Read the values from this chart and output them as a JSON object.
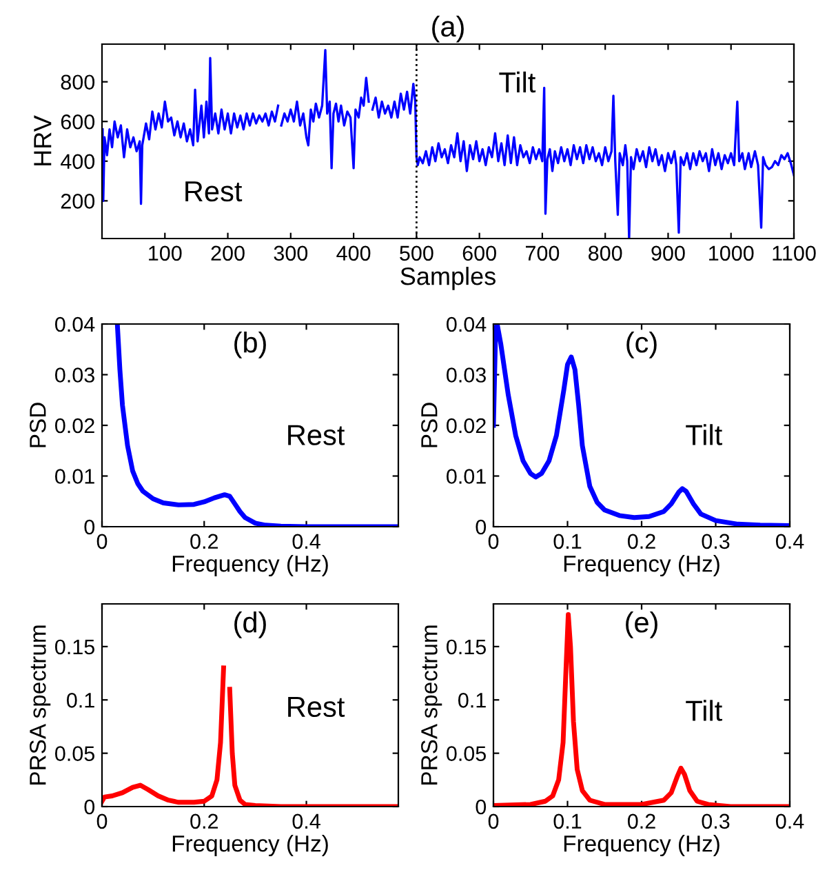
{
  "chart_data": [
    {
      "type": "line",
      "title": "(a)",
      "xlabel": "Samples",
      "ylabel": "HRV",
      "xlim": [
        0,
        1100
      ],
      "ylim": [
        10,
        990
      ],
      "xticks": [
        100,
        200,
        300,
        400,
        500,
        600,
        700,
        800,
        900,
        1000,
        1100
      ],
      "yticks": [
        200,
        400,
        600,
        800
      ],
      "annotations": [
        "Rest",
        "Tilt"
      ],
      "ref_lines": [
        {
          "axis": "x",
          "value": 500,
          "color": "#000000",
          "line_style": "dotted"
        }
      ],
      "series": [
        {
          "color": "#0000ff",
          "x": [
            1,
            2,
            4,
            8,
            12,
            16,
            20,
            25,
            30,
            35,
            40,
            45,
            50,
            55,
            60,
            62,
            64,
            70,
            75,
            80,
            85,
            90,
            95,
            100,
            105,
            110,
            115,
            120,
            125,
            130,
            135,
            140,
            145,
            148,
            152,
            158,
            162,
            166,
            170,
            172,
            175,
            180,
            185,
            190,
            195,
            200,
            205,
            210,
            215,
            220,
            225,
            230,
            235,
            240,
            245,
            250,
            255,
            260,
            265,
            270,
            275,
            280,
            282,
            285,
            290,
            295,
            300,
            305,
            310,
            315,
            320,
            325,
            328,
            332,
            336,
            340,
            345,
            350,
            355,
            358,
            362,
            365,
            368,
            372,
            376,
            380,
            385,
            390,
            395,
            400,
            403,
            408,
            412,
            416,
            420,
            424,
            427,
            430,
            435,
            440,
            445,
            450,
            455,
            460,
            465,
            470,
            475,
            480,
            485,
            490,
            495,
            498,
            500,
            502,
            505,
            510,
            515,
            520,
            525,
            530,
            535,
            540,
            545,
            550,
            555,
            560,
            565,
            570,
            575,
            580,
            585,
            590,
            595,
            600,
            605,
            610,
            615,
            620,
            625,
            630,
            635,
            640,
            645,
            650,
            655,
            660,
            665,
            670,
            675,
            680,
            685,
            690,
            695,
            700,
            703,
            705,
            708,
            712,
            716,
            720,
            725,
            730,
            735,
            740,
            745,
            750,
            755,
            760,
            765,
            770,
            775,
            780,
            785,
            790,
            795,
            800,
            805,
            810,
            813,
            816,
            820,
            823,
            828,
            832,
            835,
            838,
            841,
            845,
            850,
            855,
            860,
            865,
            870,
            875,
            880,
            885,
            890,
            895,
            900,
            905,
            910,
            913,
            917,
            920,
            925,
            930,
            935,
            940,
            945,
            950,
            955,
            960,
            965,
            970,
            975,
            980,
            985,
            990,
            995,
            1000,
            1005,
            1010,
            1013,
            1018,
            1022,
            1028,
            1032,
            1038,
            1043,
            1048,
            1051,
            1055,
            1060,
            1065,
            1070,
            1075,
            1080,
            1085,
            1090,
            1095,
            1100
          ],
          "values": [
            560,
            200,
            520,
            430,
            560,
            470,
            600,
            520,
            580,
            420,
            560,
            470,
            520,
            450,
            500,
            185,
            480,
            590,
            510,
            650,
            560,
            640,
            570,
            700,
            600,
            620,
            530,
            600,
            520,
            590,
            500,
            560,
            480,
            760,
            500,
            680,
            520,
            700,
            540,
            920,
            560,
            640,
            540,
            660,
            560,
            640,
            540,
            640,
            570,
            630,
            560,
            640,
            580,
            640,
            590,
            630,
            600,
            640,
            580,
            650,
            600,
            680,
            null,
            580,
            640,
            600,
            660,
            600,
            700,
            580,
            640,
            520,
            480,
            660,
            600,
            690,
            620,
            680,
            960,
            640,
            700,
            365,
            640,
            690,
            600,
            680,
            580,
            650,
            620,
            365,
            660,
            620,
            720,
            680,
            820,
            700,
            null,
            660,
            720,
            620,
            700,
            640,
            680,
            620,
            700,
            620,
            740,
            660,
            750,
            640,
            790,
            700,
            420,
            380,
            420,
            390,
            450,
            380,
            470,
            400,
            490,
            420,
            460,
            390,
            480,
            420,
            540,
            400,
            500,
            350,
            480,
            410,
            500,
            400,
            460,
            380,
            470,
            420,
            540,
            400,
            490,
            380,
            530,
            390,
            520,
            380,
            480,
            420,
            450,
            390,
            470,
            410,
            460,
            400,
            770,
            135,
            410,
            460,
            350,
            450,
            390,
            470,
            400,
            460,
            380,
            480,
            410,
            470,
            390,
            480,
            410,
            470,
            400,
            440,
            380,
            470,
            400,
            450,
            730,
            400,
            130,
            440,
            380,
            480,
            400,
            10,
            420,
            360,
            460,
            400,
            450,
            370,
            470,
            400,
            460,
            380,
            430,
            350,
            440,
            390,
            450,
            380,
            40,
            420,
            380,
            440,
            360,
            440,
            380,
            450,
            400,
            440,
            350,
            460,
            380,
            440,
            360,
            430,
            390,
            440,
            380,
            700,
            400,
            440,
            360,
            440,
            370,
            450,
            380,
            65,
            420,
            380,
            360,
            370,
            400,
            380,
            430,
            410,
            440,
            390,
            330
          ]
        }
      ]
    },
    {
      "type": "line",
      "title": "(b)",
      "xlabel": "Frequency (Hz)",
      "ylabel": "PSD",
      "xlim": [
        0,
        0.58
      ],
      "ylim": [
        0,
        0.04
      ],
      "xticks": [
        0,
        0.2,
        0.4
      ],
      "yticks": [
        0,
        0.01,
        0.02,
        0.03,
        0.04
      ],
      "annotations": [
        "Rest"
      ],
      "series": [
        {
          "color": "#0000ff",
          "x": [
            0.03,
            0.035,
            0.04,
            0.05,
            0.06,
            0.07,
            0.08,
            0.1,
            0.12,
            0.15,
            0.18,
            0.2,
            0.22,
            0.24,
            0.25,
            0.26,
            0.27,
            0.28,
            0.3,
            0.32,
            0.35,
            0.4,
            0.5,
            0.58
          ],
          "values": [
            0.04,
            0.031,
            0.024,
            0.016,
            0.011,
            0.0085,
            0.007,
            0.0055,
            0.0047,
            0.0043,
            0.0044,
            0.0049,
            0.0057,
            0.0063,
            0.006,
            0.0045,
            0.003,
            0.0018,
            0.0007,
            0.0003,
            0.0001,
            0,
            0,
            0
          ]
        }
      ]
    },
    {
      "type": "line",
      "title": "(c)",
      "xlabel": "Frequency (Hz)",
      "ylabel": "PSD",
      "xlim": [
        0,
        0.4
      ],
      "ylim": [
        0,
        0.04
      ],
      "xticks": [
        0,
        0.1,
        0.2,
        0.3,
        0.4
      ],
      "yticks": [
        0,
        0.01,
        0.02,
        0.03,
        0.04
      ],
      "annotations": [
        "Tilt"
      ],
      "series": [
        {
          "color": "#0000ff",
          "x": [
            0,
            0.003,
            0.005,
            0.01,
            0.02,
            0.03,
            0.04,
            0.05,
            0.057,
            0.065,
            0.075,
            0.085,
            0.095,
            0.1,
            0.105,
            0.11,
            0.115,
            0.12,
            0.13,
            0.14,
            0.15,
            0.17,
            0.19,
            0.21,
            0.23,
            0.24,
            0.25,
            0.255,
            0.26,
            0.27,
            0.28,
            0.3,
            0.33,
            0.36,
            0.4
          ],
          "values": [
            0.02,
            0.039,
            0.04,
            0.036,
            0.026,
            0.018,
            0.013,
            0.0105,
            0.0098,
            0.0105,
            0.013,
            0.018,
            0.027,
            0.032,
            0.0335,
            0.031,
            0.024,
            0.016,
            0.008,
            0.0048,
            0.0033,
            0.0022,
            0.0018,
            0.002,
            0.003,
            0.0045,
            0.0068,
            0.0075,
            0.007,
            0.0045,
            0.0025,
            0.0012,
            0.0005,
            0.0003,
            0.0002
          ]
        }
      ]
    },
    {
      "type": "line",
      "title": "(d)",
      "xlabel": "Frequency (Hz)",
      "ylabel": "PRSA spectrum",
      "xlim": [
        0,
        0.58
      ],
      "ylim": [
        0,
        0.19
      ],
      "xticks": [
        0,
        0.2,
        0.4
      ],
      "yticks": [
        0,
        0.05,
        0.1,
        0.15
      ],
      "annotations": [
        "Rest"
      ],
      "series": [
        {
          "color": "#ff0000",
          "x": [
            0,
            0.005,
            0.02,
            0.04,
            0.06,
            0.075,
            0.09,
            0.11,
            0.13,
            0.15,
            0.18,
            0.2,
            0.215,
            0.225,
            0.232,
            0.238,
            0.241,
            0.246,
            0.25,
            0.255,
            0.26,
            0.27,
            0.28,
            0.3,
            0.35,
            0.4,
            0.58
          ],
          "values": [
            0.005,
            0.009,
            0.01,
            0.013,
            0.018,
            0.02,
            0.016,
            0.01,
            0.006,
            0.004,
            0.004,
            0.005,
            0.01,
            0.025,
            0.06,
            0.13,
            null,
            null,
            0.11,
            0.05,
            0.02,
            0.006,
            0.002,
            0.001,
            0,
            0,
            0
          ]
        }
      ]
    },
    {
      "type": "line",
      "title": "(e)",
      "xlabel": "Frequency (Hz)",
      "ylabel": "PRSA spectrum",
      "xlim": [
        0,
        0.4
      ],
      "ylim": [
        0,
        0.19
      ],
      "xticks": [
        0,
        0.1,
        0.2,
        0.3,
        0.4
      ],
      "yticks": [
        0,
        0.05,
        0.1,
        0.15
      ],
      "annotations": [
        "Tilt"
      ],
      "series": [
        {
          "color": "#ff0000",
          "x": [
            0,
            0.05,
            0.07,
            0.08,
            0.088,
            0.094,
            0.098,
            0.101,
            0.104,
            0.108,
            0.113,
            0.12,
            0.13,
            0.15,
            0.2,
            0.23,
            0.24,
            0.248,
            0.253,
            0.258,
            0.265,
            0.275,
            0.29,
            0.32,
            0.4
          ],
          "values": [
            0.001,
            0.002,
            0.005,
            0.01,
            0.025,
            0.06,
            0.13,
            0.18,
            0.15,
            0.08,
            0.035,
            0.015,
            0.006,
            0.002,
            0.002,
            0.006,
            0.013,
            0.028,
            0.036,
            0.03,
            0.015,
            0.005,
            0.002,
            0,
            0
          ]
        }
      ]
    }
  ]
}
